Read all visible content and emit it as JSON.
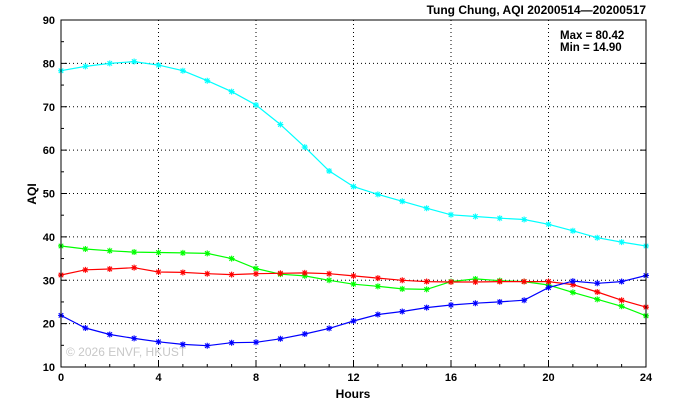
{
  "chart_data": {
    "type": "line",
    "title": "Tung Chung, AQI 20200514—20200517",
    "xlabel": "Hours",
    "ylabel": "AQI",
    "xlim": [
      0,
      24
    ],
    "ylim": [
      10,
      90
    ],
    "xticks": [
      0,
      4,
      8,
      12,
      16,
      20,
      24
    ],
    "yticks": [
      10,
      20,
      30,
      40,
      50,
      60,
      70,
      80,
      90
    ],
    "grid": true,
    "stats": {
      "max_text": "Max = 80.42",
      "min_text": "Min = 14.90"
    },
    "watermark": "© 2026  ENVF, HKUST",
    "series": [
      {
        "color": "#00ffff",
        "x": [
          0,
          1,
          2,
          3,
          4,
          5,
          6,
          7,
          8,
          9,
          10,
          11,
          12,
          13,
          14,
          15,
          16,
          17,
          18,
          19,
          20,
          21,
          22,
          23,
          24
        ],
        "values": [
          78.3,
          79.3,
          80.0,
          80.42,
          79.6,
          78.3,
          76.0,
          73.5,
          70.4,
          65.9,
          60.7,
          55.2,
          51.6,
          49.8,
          48.2,
          46.6,
          45.1,
          44.7,
          44.3,
          44.0,
          42.9,
          41.4,
          39.8,
          38.8,
          37.9
        ]
      },
      {
        "color": "#00ff00",
        "x": [
          0,
          1,
          2,
          3,
          4,
          5,
          6,
          7,
          8,
          9,
          10,
          11,
          12,
          13,
          14,
          15,
          16,
          17,
          18,
          19,
          20,
          21,
          22,
          23,
          24
        ],
        "values": [
          37.9,
          37.2,
          36.8,
          36.5,
          36.4,
          36.3,
          36.2,
          35.0,
          32.7,
          31.4,
          31.0,
          30.0,
          29.1,
          28.6,
          28.0,
          27.9,
          29.7,
          30.3,
          29.9,
          29.7,
          28.9,
          27.2,
          25.6,
          24.0,
          21.8
        ]
      },
      {
        "color": "#ff0000",
        "x": [
          0,
          1,
          2,
          3,
          4,
          5,
          6,
          7,
          8,
          9,
          10,
          11,
          12,
          13,
          14,
          15,
          16,
          17,
          18,
          19,
          20,
          21,
          22,
          23,
          24
        ],
        "values": [
          31.2,
          32.4,
          32.6,
          32.9,
          31.9,
          31.8,
          31.5,
          31.3,
          31.5,
          31.6,
          31.7,
          31.5,
          31.0,
          30.5,
          30.0,
          29.7,
          29.6,
          29.6,
          29.7,
          29.7,
          29.7,
          29.0,
          27.3,
          25.4,
          23.8
        ]
      },
      {
        "color": "#0000ff",
        "x": [
          0,
          1,
          2,
          3,
          4,
          5,
          6,
          7,
          8,
          9,
          10,
          11,
          12,
          13,
          14,
          15,
          16,
          17,
          18,
          19,
          20,
          21,
          22,
          23,
          24
        ],
        "values": [
          21.9,
          19.0,
          17.5,
          16.6,
          15.8,
          15.2,
          14.9,
          15.6,
          15.7,
          16.5,
          17.6,
          18.9,
          20.6,
          22.1,
          22.8,
          23.7,
          24.3,
          24.7,
          25.0,
          25.4,
          28.3,
          29.8,
          29.3,
          29.7,
          31.1
        ]
      }
    ]
  }
}
